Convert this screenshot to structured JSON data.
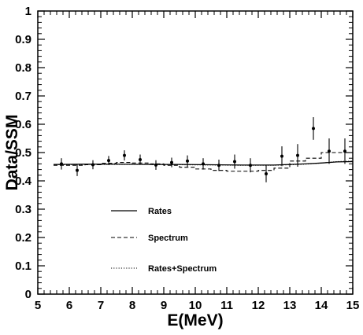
{
  "chart_data": {
    "type": "line",
    "xlabel": "E(MeV)",
    "ylabel": "Data/SSM",
    "xlim": [
      5,
      15
    ],
    "ylim": [
      0,
      1
    ],
    "x_ticks": [
      "5",
      "6",
      "7",
      "8",
      "9",
      "10",
      "11",
      "12",
      "13",
      "14",
      "15"
    ],
    "y_ticks": [
      "0",
      "0.1",
      "0.2",
      "0.3",
      "0.4",
      "0.5",
      "0.6",
      "0.7",
      "0.8",
      "0.9",
      "1"
    ],
    "grid": false,
    "legend_position": "lower-left",
    "data_points": {
      "x": [
        5.75,
        6.25,
        6.75,
        7.25,
        7.75,
        8.25,
        8.75,
        9.25,
        9.75,
        10.25,
        10.75,
        11.25,
        11.75,
        12.25,
        12.75,
        13.25,
        13.75,
        14.25,
        14.75
      ],
      "y": [
        0.46,
        0.437,
        0.457,
        0.472,
        0.49,
        0.475,
        0.456,
        0.465,
        0.47,
        0.46,
        0.455,
        0.468,
        0.455,
        0.425,
        0.487,
        0.49,
        0.585,
        0.505,
        0.505
      ],
      "yerr": [
        0.02,
        0.02,
        0.016,
        0.016,
        0.018,
        0.018,
        0.017,
        0.017,
        0.02,
        0.02,
        0.02,
        0.025,
        0.025,
        0.03,
        0.035,
        0.04,
        0.04,
        0.045,
        0.045
      ]
    },
    "series": [
      {
        "name": "Rates",
        "style": "solid",
        "x": [
          5.5,
          6.5,
          7.5,
          8.5,
          9.5,
          10.5,
          11.5,
          12.5,
          13.0,
          13.5,
          14.0,
          14.5,
          15.0
        ],
        "y": [
          0.458,
          0.459,
          0.459,
          0.458,
          0.458,
          0.457,
          0.456,
          0.456,
          0.458,
          0.46,
          0.463,
          0.467,
          0.468
        ]
      },
      {
        "name": "Spectrum",
        "style": "dashed",
        "steps": [
          [
            5.5,
            6.0,
            0.455
          ],
          [
            6.0,
            6.5,
            0.455
          ],
          [
            6.5,
            7.0,
            0.457
          ],
          [
            7.0,
            7.5,
            0.462
          ],
          [
            7.5,
            8.0,
            0.465
          ],
          [
            8.0,
            8.5,
            0.463
          ],
          [
            8.5,
            9.0,
            0.46
          ],
          [
            9.0,
            9.5,
            0.455
          ],
          [
            9.5,
            10.0,
            0.448
          ],
          [
            10.0,
            10.5,
            0.442
          ],
          [
            10.5,
            11.0,
            0.437
          ],
          [
            11.0,
            11.5,
            0.434
          ],
          [
            11.5,
            12.0,
            0.434
          ],
          [
            12.0,
            12.5,
            0.437
          ],
          [
            12.5,
            13.0,
            0.445
          ],
          [
            13.0,
            13.5,
            0.47
          ],
          [
            13.5,
            14.0,
            0.48
          ],
          [
            14.0,
            14.5,
            0.5
          ],
          [
            14.5,
            15.0,
            0.5
          ]
        ]
      },
      {
        "name": "Rates+Spectrum",
        "style": "dotted",
        "x": [
          5.5,
          6.5,
          7.5,
          8.5,
          9.5,
          10.5,
          11.5,
          12.5,
          13.0,
          13.5,
          14.0,
          14.5,
          15.0
        ],
        "y": [
          0.457,
          0.458,
          0.458,
          0.458,
          0.457,
          0.456,
          0.455,
          0.455,
          0.457,
          0.459,
          0.463,
          0.468,
          0.47
        ]
      }
    ],
    "legend": [
      "Rates",
      "Spectrum",
      "Rates+Spectrum"
    ]
  }
}
